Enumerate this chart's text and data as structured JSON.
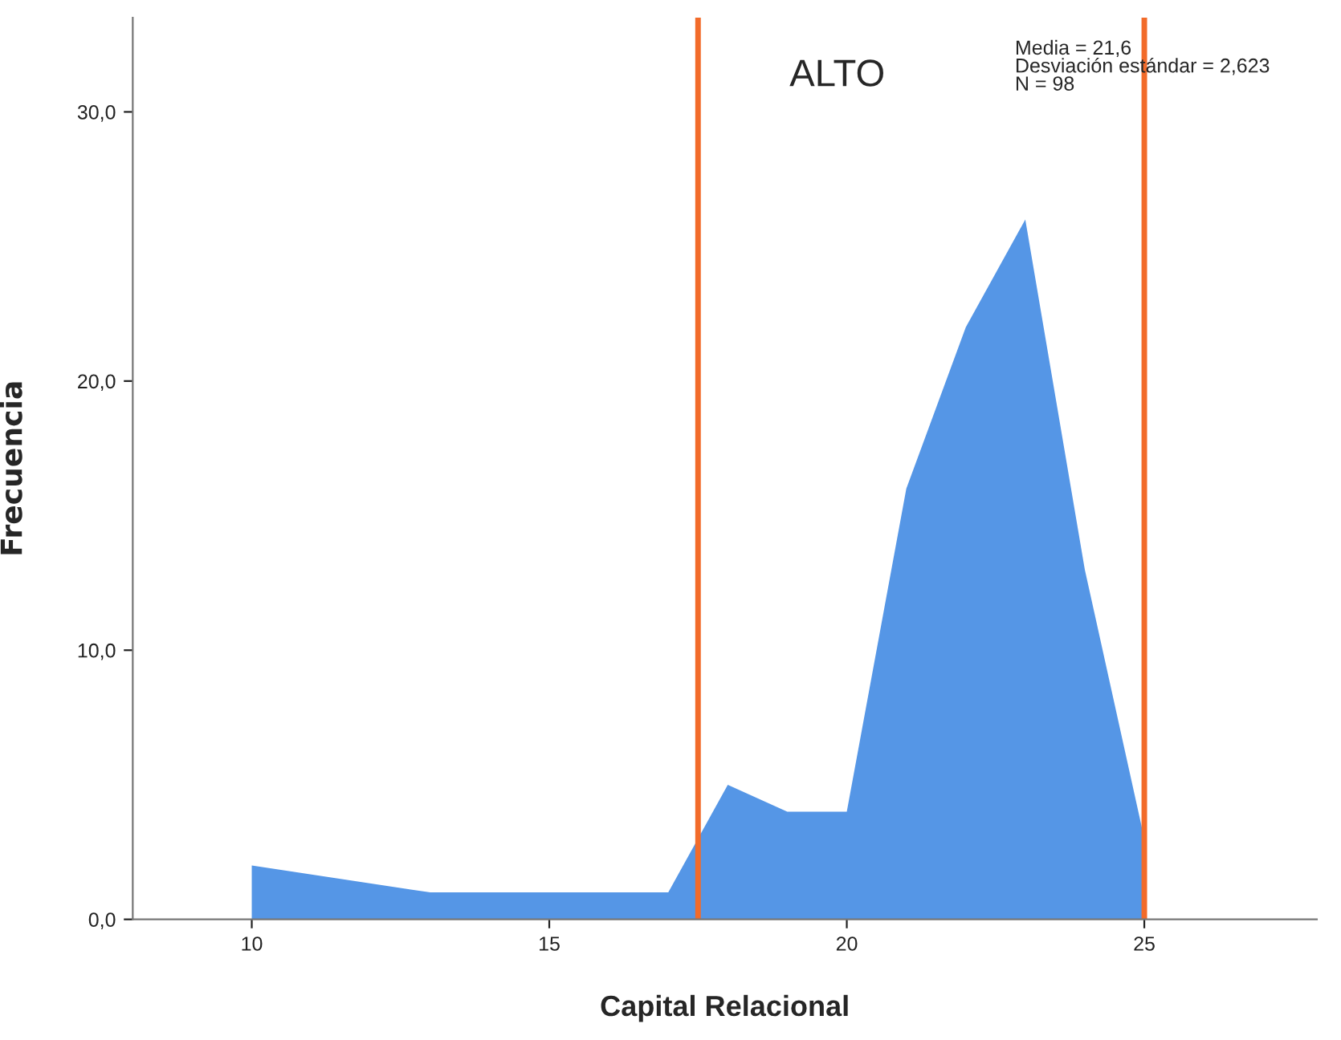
{
  "chart_data": {
    "type": "area",
    "xlabel": "Capital Relacional",
    "ylabel": "Frecuencia",
    "x": [
      10,
      13,
      17,
      18,
      19,
      20,
      21,
      22,
      23,
      24,
      25
    ],
    "series": [
      {
        "color": "#5596e6",
        "values": [
          2,
          1,
          1,
          5,
          4,
          4,
          16,
          22,
          26,
          13,
          3
        ]
      }
    ],
    "xlim": [
      8,
      27.9
    ],
    "xticks": [
      10,
      15,
      20,
      25
    ],
    "ylim": [
      0,
      33.5
    ],
    "yticks": [
      {
        "value": 0,
        "label": "0,0"
      },
      {
        "value": 10,
        "label": "10,0"
      },
      {
        "value": 20,
        "label": "20,0"
      },
      {
        "value": 30,
        "label": "30,0"
      }
    ],
    "ref_lines": [
      {
        "axis": "x",
        "value": 17.5,
        "color": "#f26b2a"
      },
      {
        "axis": "x",
        "value": 25,
        "color": "#f26b2a"
      }
    ],
    "annotations": [
      "ALTO",
      "Media = 21,6\nDesviación estándar = 2,623\nN = 98"
    ],
    "grid": false,
    "legend": false
  }
}
